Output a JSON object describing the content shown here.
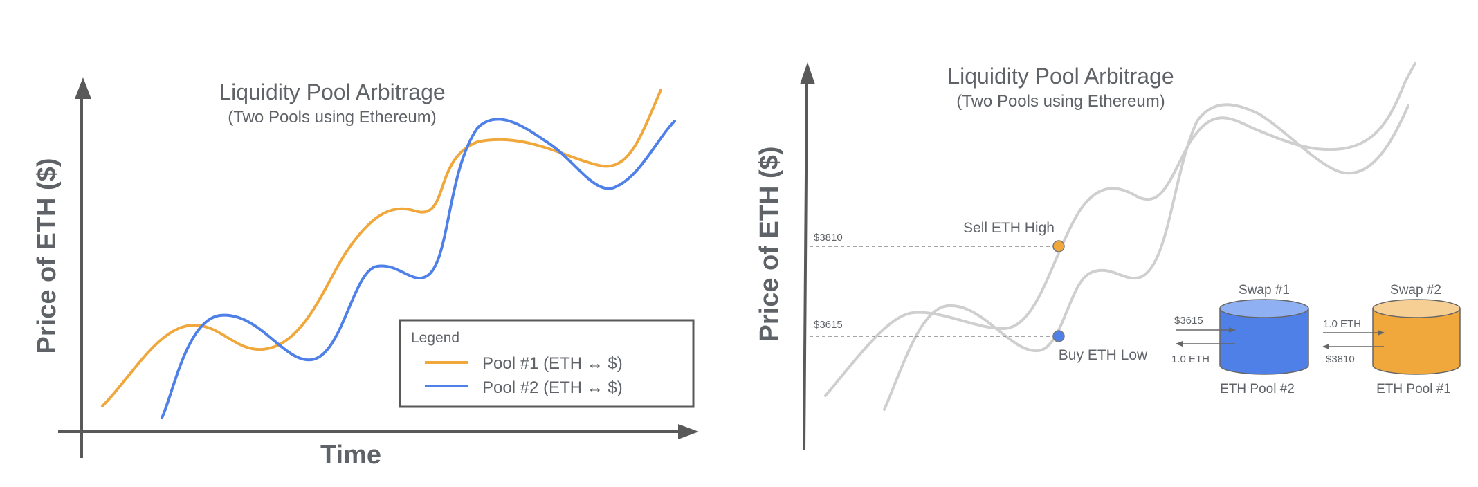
{
  "colors": {
    "axis": "#595959",
    "pool1": "#f0a73c",
    "pool2": "#4e80e8",
    "gray_curve": "#cfcfcf",
    "pool2_top": "#8fb0f2",
    "pool1_top": "#f6cf95"
  },
  "left_panel": {
    "title": "Liquidity Pool Arbitrage",
    "subtitle": "(Two Pools using Ethereum)",
    "ylabel": "Price of ETH ($)",
    "xlabel": "Time",
    "legend": {
      "title": "Legend",
      "items": [
        {
          "label": "Pool #1 (ETH ↔ $)",
          "color": "#f0a73c"
        },
        {
          "label": "Pool #2 (ETH ↔ $)",
          "color": "#4e80e8"
        }
      ]
    }
  },
  "right_panel": {
    "title": "Liquidity Pool Arbitrage",
    "subtitle": "(Two Pools using Ethereum)",
    "ylabel": "Price of ETH ($)",
    "high_price": "$3810",
    "low_price": "$3615",
    "sell_label": "Sell ETH High",
    "buy_label": "Buy ETH Low",
    "swap1": {
      "title": "Swap #1",
      "pool_label": "ETH Pool #2",
      "in_label": "$3615",
      "out_label": "1.0 ETH"
    },
    "swap2": {
      "title": "Swap #2",
      "pool_label": "ETH Pool #1",
      "in_label": "1.0 ETH",
      "out_label": "$3810"
    }
  }
}
